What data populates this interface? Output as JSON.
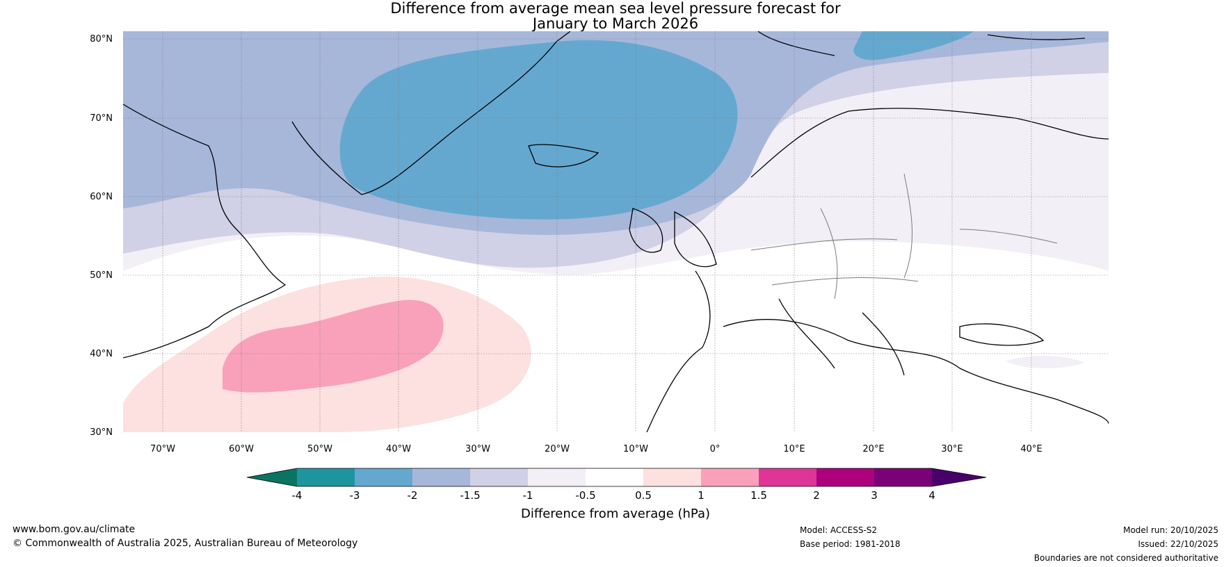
{
  "title": {
    "line1": "Difference from average mean sea level pressure forecast for",
    "line2": "January to March 2026"
  },
  "map": {
    "lat_labels": [
      "80°N",
      "70°N",
      "60°N",
      "50°N",
      "40°N",
      "30°N"
    ],
    "lon_labels": [
      "70°W",
      "60°W",
      "50°W",
      "40°W",
      "30°W",
      "20°W",
      "10°W",
      "0°",
      "10°E",
      "20°E",
      "30°E",
      "40°E"
    ]
  },
  "colorbar": {
    "title": "Difference from average (hPa)",
    "ticks": [
      "-4",
      "-3",
      "-2",
      "-1.5",
      "-1",
      "-0.5",
      "0.5",
      "1",
      "1.5",
      "2",
      "3",
      "4"
    ],
    "colors": {
      "below": "#0b7361",
      "c1": "#1e959c",
      "c2": "#65a8cf",
      "c3": "#a6b7da",
      "c4": "#d0d0e6",
      "c5": "#f3eff6",
      "c6": "#ffffff",
      "c7": "#fde0e0",
      "c8": "#f9a1ba",
      "c9": "#dd3697",
      "c10": "#ad017e",
      "c11": "#7a0177",
      "above": "#49006a"
    }
  },
  "footer": {
    "website": "www.bom.gov.au/climate",
    "copyright": "© Commonwealth of Australia 2025, Australian Bureau of Meteorology",
    "model": "Model: ACCESS-S2",
    "base_period": "Base period: 1981-2018",
    "model_run": "Model run: 20/10/2025",
    "issued": "Issued: 22/10/2025",
    "disclaimer": "Boundaries are not considered authoritative"
  }
}
